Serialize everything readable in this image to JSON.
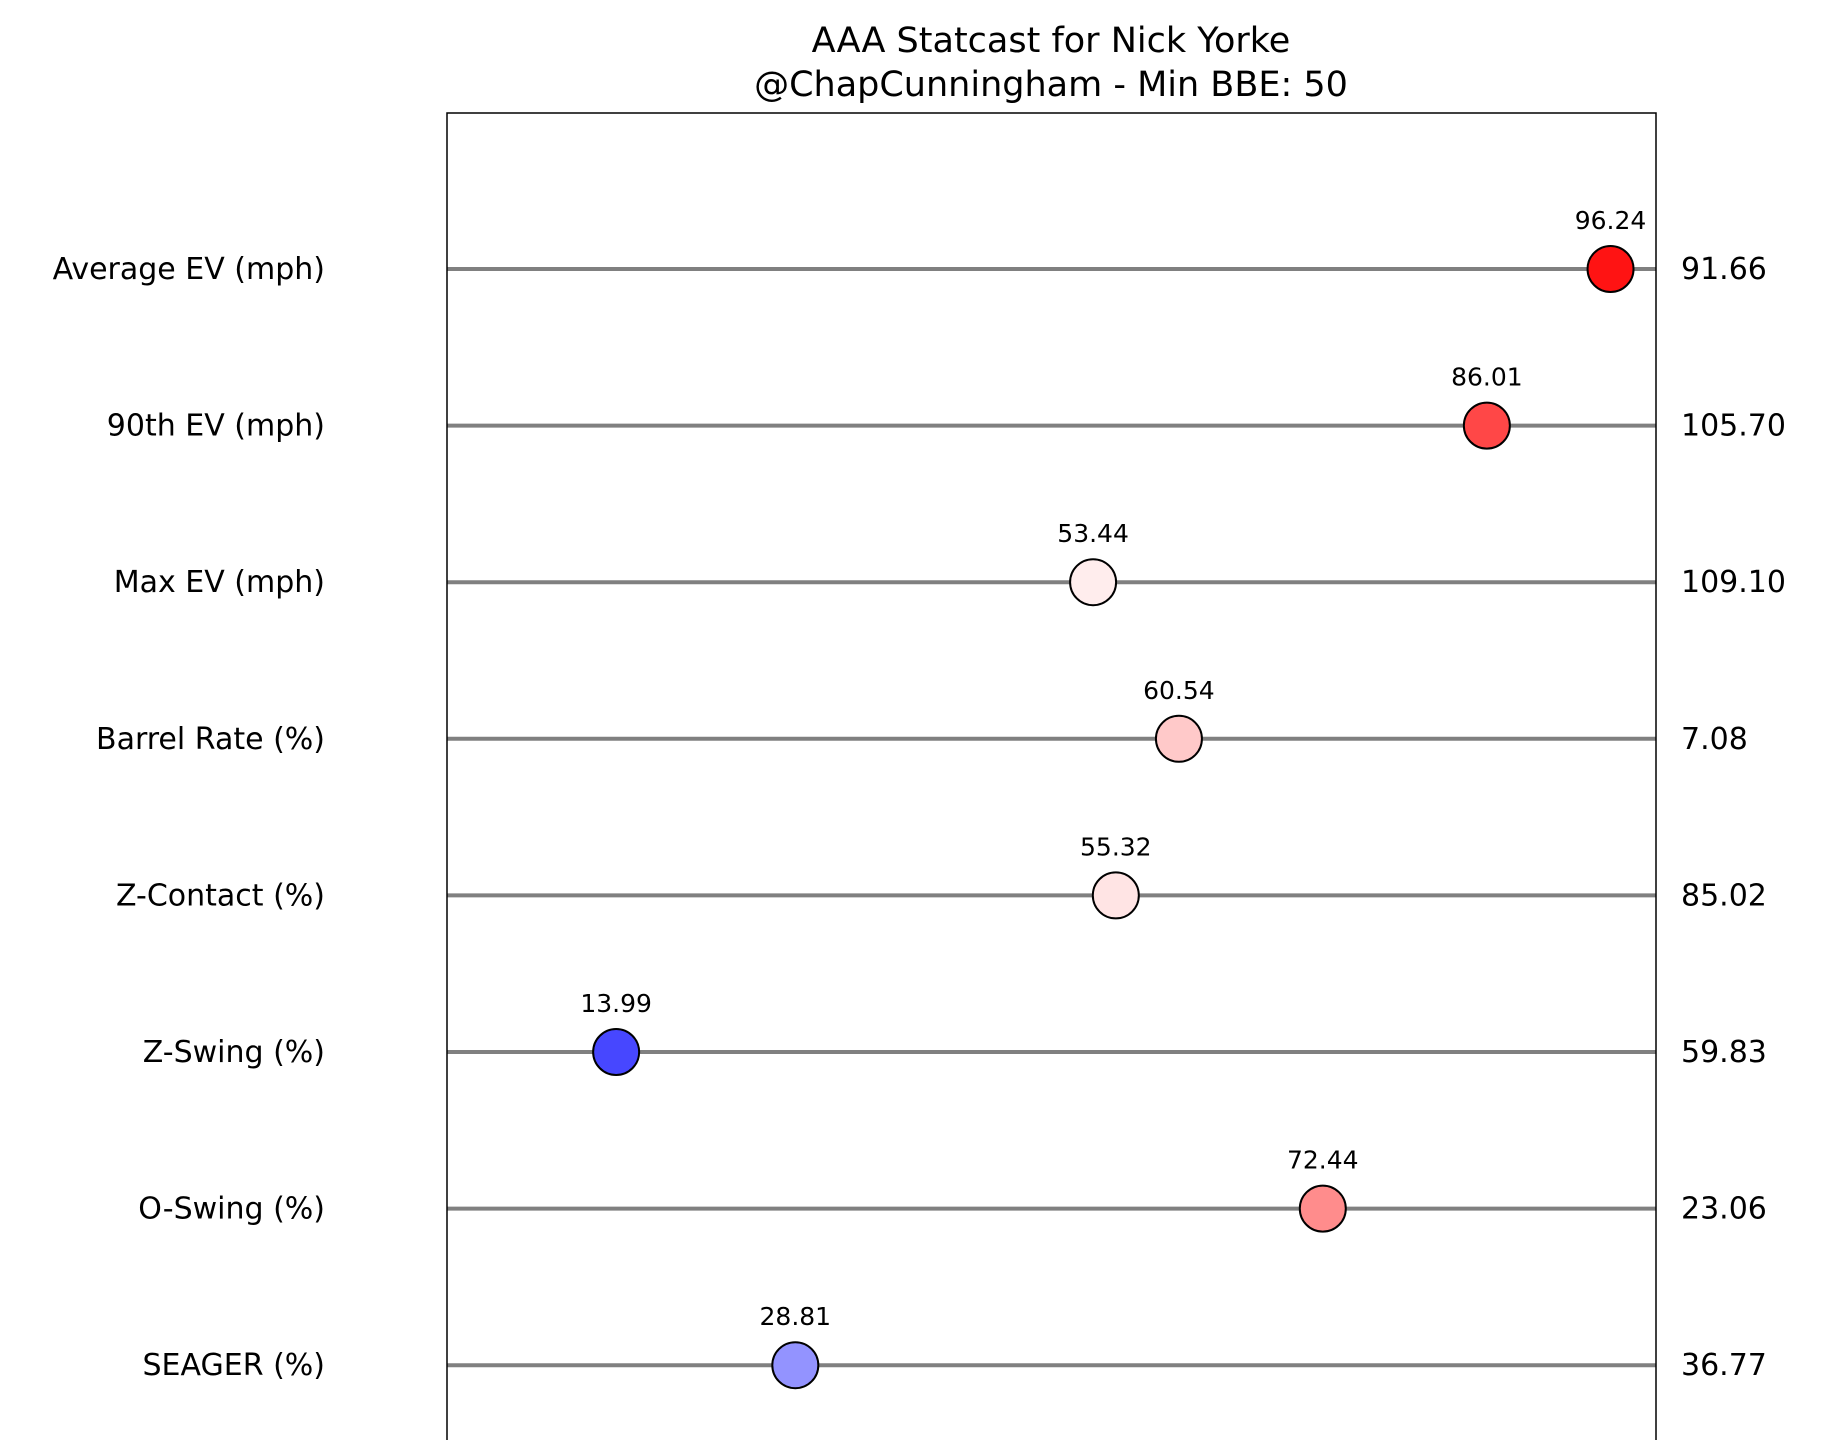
{
  "chart_data": {
    "type": "scatter",
    "title": "AAA Statcast for Nick Yorke",
    "subtitle": "@ChapCunningham - Min BBE: 50",
    "xlim": [
      0,
      100
    ],
    "grid": false,
    "categories": [
      "Average EV (mph)",
      "90th EV (mph)",
      "Max EV (mph)",
      "Barrel Rate (%)",
      "Z-Contact (%)",
      "Z-Swing (%)",
      "O-Swing (%)",
      "SEAGER (%)"
    ],
    "percentiles": [
      96.24,
      86.01,
      53.44,
      60.54,
      55.32,
      13.99,
      72.44,
      28.81
    ],
    "percentile_labels": [
      "96.24",
      "86.01",
      "53.44",
      "60.54",
      "55.32",
      "13.99",
      "72.44",
      "28.81"
    ],
    "values": [
      "91.66",
      "105.70",
      "109.10",
      "7.08",
      "85.02",
      "59.83",
      "23.06",
      "36.77"
    ],
    "colormap": "bwr",
    "point_colors": [
      "#ff1313",
      "#ff4747",
      "#ffeded",
      "#ffc9c9",
      "#ffe4e4",
      "#4747ff",
      "#ff8c8c",
      "#9393ff"
    ],
    "line_color": "#808080"
  }
}
